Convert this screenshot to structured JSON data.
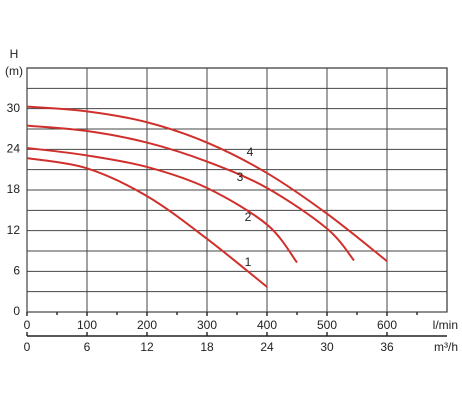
{
  "chart_data": {
    "type": "line",
    "y_label": "H",
    "y_unit": "(m)",
    "x_label": "l/min",
    "x2_label": "m³/h",
    "xlim": [
      0,
      700
    ],
    "xticks": [
      0,
      100,
      200,
      300,
      400,
      500,
      600
    ],
    "x2lim": [
      0,
      42
    ],
    "x2ticks": [
      0,
      6,
      12,
      18,
      24,
      30,
      36
    ],
    "ylim": [
      0,
      36
    ],
    "yticks": [
      0,
      6,
      12,
      18,
      24,
      30
    ],
    "grid": true,
    "series": [
      {
        "name": "1",
        "color": "#d0302c",
        "x": [
          0,
          100,
          200,
          300,
          400
        ],
        "values": [
          22.7,
          21.2,
          17.1,
          10.8,
          3.7
        ]
      },
      {
        "name": "2",
        "color": "#d0302c",
        "x": [
          0,
          100,
          200,
          300,
          400,
          450
        ],
        "values": [
          24.2,
          23.1,
          21.4,
          18.3,
          12.9,
          7.3
        ]
      },
      {
        "name": "3",
        "color": "#d0302c",
        "x": [
          0,
          100,
          200,
          300,
          400,
          500,
          545
        ],
        "values": [
          27.5,
          26.7,
          25,
          22.2,
          18.3,
          12.3,
          7.6
        ]
      },
      {
        "name": "4",
        "color": "#d0302c",
        "x": [
          0,
          100,
          200,
          300,
          400,
          500,
          600
        ],
        "values": [
          30.3,
          29.6,
          28,
          25,
          20.5,
          14.5,
          7.5
        ]
      }
    ]
  }
}
